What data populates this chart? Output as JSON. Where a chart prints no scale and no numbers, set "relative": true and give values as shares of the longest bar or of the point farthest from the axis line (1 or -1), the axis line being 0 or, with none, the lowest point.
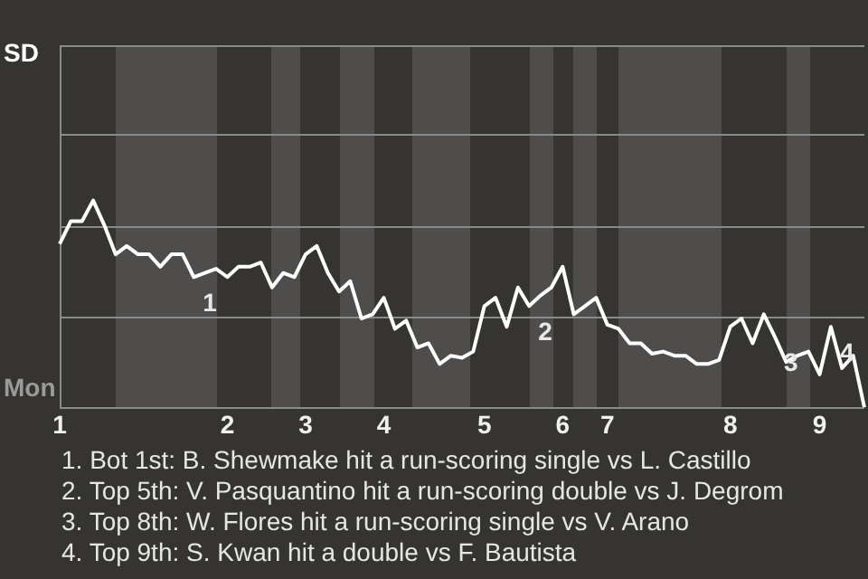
{
  "chart_data": {
    "type": "line",
    "relative": true,
    "categories": [
      "1",
      null,
      null,
      null,
      null,
      null,
      null,
      null,
      null,
      null,
      null,
      null,
      null,
      null,
      null,
      "2",
      null,
      null,
      null,
      null,
      null,
      null,
      "3",
      null,
      null,
      null,
      null,
      null,
      null,
      "4",
      null,
      null,
      null,
      null,
      null,
      null,
      null,
      null,
      "5",
      null,
      null,
      null,
      null,
      null,
      null,
      "6",
      null,
      null,
      null,
      "7",
      null,
      null,
      null,
      null,
      null,
      null,
      null,
      null,
      null,
      null,
      "8",
      null,
      null,
      null,
      null,
      null,
      null,
      null,
      "9",
      null,
      null,
      null,
      null
    ],
    "series": [
      {
        "color": "#ffffff",
        "values": [
          0.79,
          0.9,
          0.9,
          1,
          0.88,
          0.74,
          0.78,
          0.74,
          0.74,
          0.68,
          0.74,
          0.74,
          0.63,
          0.65,
          0.67,
          0.63,
          0.68,
          0.68,
          0.7,
          0.58,
          0.65,
          0.63,
          0.74,
          0.78,
          0.65,
          0.56,
          0.61,
          0.43,
          0.45,
          0.53,
          0.38,
          0.42,
          0.29,
          0.31,
          0.21,
          0.25,
          0.24,
          0.27,
          0.49,
          0.53,
          0.39,
          0.58,
          0.49,
          0.54,
          0.58,
          0.68,
          0.45,
          0.49,
          0.53,
          0.4,
          0.38,
          0.31,
          0.31,
          0.26,
          0.27,
          0.25,
          0.25,
          0.21,
          0.21,
          0.23,
          0.39,
          0.43,
          0.31,
          0.45,
          0.34,
          0.22,
          0.25,
          0.27,
          0.16,
          0.39,
          0.19,
          0.25,
          0
        ],
        "name": null
      }
    ],
    "ref_lines": [
      {
        "axis": "y",
        "value": 0.44,
        "color": "#8a8a8a"
      },
      {
        "axis": "y",
        "value": 0.88,
        "color": "#8a8a8a"
      },
      {
        "axis": "y",
        "value": 1.32,
        "color": "#8a8a8a"
      }
    ],
    "legend": false,
    "marker": "none",
    "line_style": "solid",
    "annotations": [
      "SD",
      "Mon",
      "1",
      "2",
      "3",
      "4",
      "1. Bot 1st: B. Shewmake hit a run-scoring single vs L. Castillo",
      "2. Top 5th: V. Pasquantino hit a run-scoring double vs J. Degrom",
      "3. Top 8th: W. Flores hit a run-scoring single vs V. Arano",
      "4. Top 9th: S. Kwan hit a double vs F. Bautista"
    ]
  }
}
